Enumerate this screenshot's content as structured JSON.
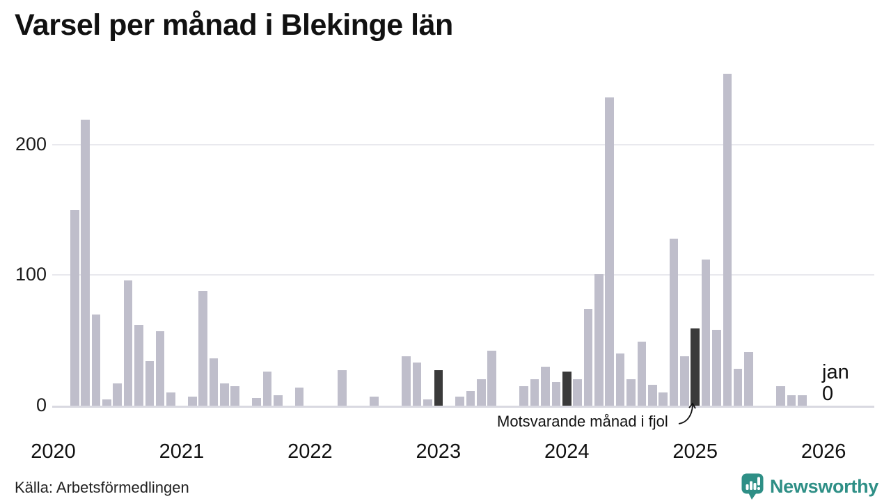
{
  "title": "Varsel per månad i Blekinge län",
  "annotation": {
    "text": "Motsvarande månad i fjol"
  },
  "latest_label": {
    "month": "jan",
    "value": "0"
  },
  "source": "Källa: Arbetsförmedlingen",
  "brand": {
    "name": "Newsworthy"
  },
  "colors": {
    "bar": "#bfbecb",
    "bar_highlight": "#3a3a3a",
    "grid": "#e9e9ee",
    "axis": "#d9d9e1",
    "brand_teal": "#2e8f86",
    "text": "#111111"
  },
  "chart_data": {
    "type": "bar",
    "title": "Varsel per månad i Blekinge län",
    "xlabel": "",
    "ylabel": "",
    "ylim": [
      0,
      260
    ],
    "yticks": [
      0,
      100,
      200
    ],
    "grid": "horizontal",
    "legend": "none",
    "x_unit": "month",
    "x_range": [
      "2020-01",
      "2026-01"
    ],
    "years": [
      2020,
      2021,
      2022,
      2023,
      2024,
      2025,
      2026
    ],
    "values_by_year": {
      "2020": [
        0,
        0,
        150,
        219,
        70,
        5,
        17,
        96,
        62,
        34,
        57,
        10
      ],
      "2021": [
        0,
        7,
        88,
        36,
        17,
        15,
        0,
        6,
        26,
        8,
        0,
        14
      ],
      "2022": [
        0,
        0,
        0,
        27,
        0,
        0,
        7,
        0,
        0,
        38,
        33,
        5
      ],
      "2023": [
        27,
        0,
        7,
        11,
        20,
        42,
        0,
        0,
        15,
        20,
        30,
        18
      ],
      "2024": [
        26,
        20,
        74,
        101,
        236,
        40,
        20,
        49,
        16,
        10,
        128,
        38
      ],
      "2025": [
        59,
        112,
        58,
        254,
        28,
        41,
        0,
        0,
        15,
        8,
        8,
        0
      ],
      "2026": [
        0
      ]
    },
    "highlight_months": [
      [
        2023,
        1
      ],
      [
        2024,
        1
      ],
      [
        2025,
        1
      ]
    ],
    "latest_point": {
      "year": 2026,
      "month": "jan",
      "value": 0
    }
  }
}
